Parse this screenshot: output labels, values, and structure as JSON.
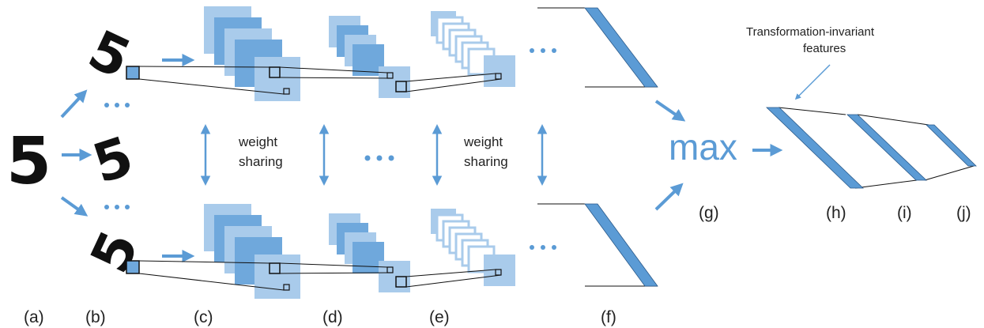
{
  "labels": {
    "a": "(a)",
    "b": "(b)",
    "c": "(c)",
    "d": "(d)",
    "e": "(e)",
    "f": "(f)",
    "g": "(g)",
    "h": "(h)",
    "i": "(i)",
    "j": "(j)"
  },
  "annotations": {
    "weight_sharing_1_line1": "weight",
    "weight_sharing_1_line2": "sharing",
    "weight_sharing_2_line1": "weight",
    "weight_sharing_2_line2": "sharing",
    "invariant_line1": "Transformation-invariant",
    "invariant_line2": "features",
    "max": "max"
  },
  "digits": {
    "input": "5",
    "top": "5",
    "middle": "5",
    "bottom": "5"
  },
  "colors": {
    "accent": "#5b9bd5",
    "light": "#a9cbeb",
    "mid": "#6fa8dc",
    "text": "#222222"
  }
}
